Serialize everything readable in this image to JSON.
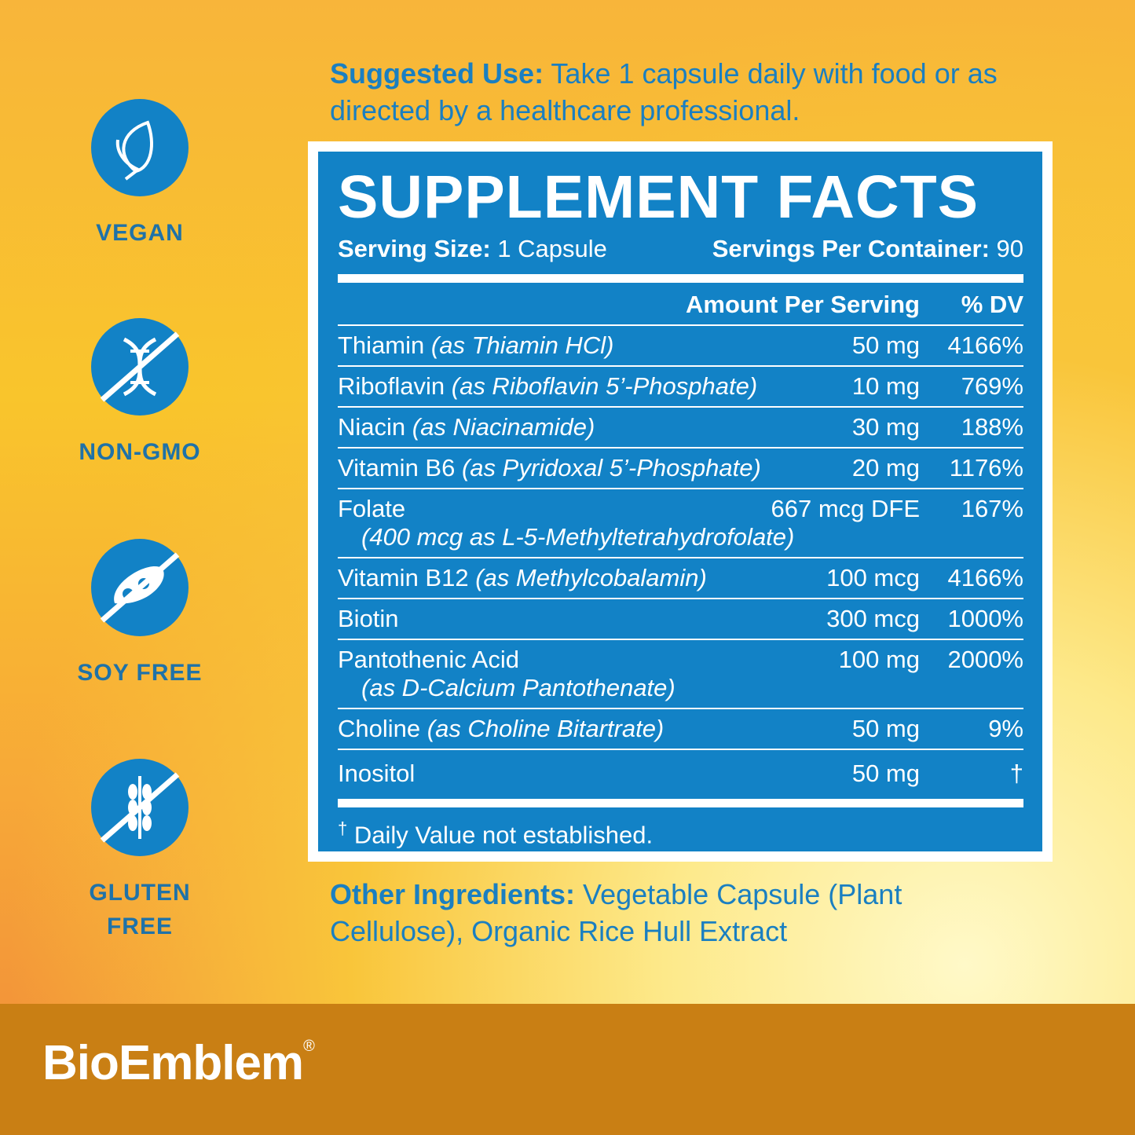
{
  "badges": [
    {
      "lines": [
        "VEGAN"
      ]
    },
    {
      "lines": [
        "NON-GMO"
      ]
    },
    {
      "lines": [
        "SOY FREE"
      ]
    },
    {
      "lines": [
        "GLUTEN",
        "FREE"
      ]
    }
  ],
  "suggested_use": {
    "label": "Suggested Use:",
    "text": "Take 1 capsule daily with food or as directed by a healthcare professional."
  },
  "facts": {
    "title": "SUPPLEMENT FACTS",
    "serving_size_label": "Serving Size:",
    "serving_size": "1 Capsule",
    "servings_label": "Servings Per Container:",
    "servings": 90,
    "amount_header": "Amount Per Serving",
    "dv_header": "% DV",
    "rows": [
      {
        "name": "Thiamin",
        "source": "(as Thiamin HCl)",
        "amount": "50 mg",
        "dv": "4166%"
      },
      {
        "name": "Riboflavin",
        "source": "(as Riboflavin 5’-Phosphate)",
        "amount": "10 mg",
        "dv": "769%"
      },
      {
        "name": "Niacin",
        "source": "(as Niacinamide)",
        "amount": "30 mg",
        "dv": "188%"
      },
      {
        "name": "Vitamin B6",
        "source": "(as Pyridoxal 5’-Phosphate)",
        "amount": "20 mg",
        "dv": "1176%"
      },
      {
        "name": "Folate",
        "source_line": "(400 mcg as L-5-Methyltetrahydrofolate)",
        "amount": "667 mcg DFE",
        "dv": "167%"
      },
      {
        "name": "Vitamin B12",
        "source": "(as Methylcobalamin)",
        "amount": "100 mcg",
        "dv": "4166%"
      },
      {
        "name": "Biotin",
        "amount": "300 mcg",
        "dv": "1000%"
      },
      {
        "name": "Pantothenic Acid",
        "source_line": "(as D-Calcium Pantothenate)",
        "amount": "100 mg",
        "dv": "2000%"
      },
      {
        "name": "Choline",
        "source": "(as Choline Bitartrate)",
        "amount": "50 mg",
        "dv": "9%"
      },
      {
        "name": "Inositol",
        "amount": "50 mg",
        "dv": "†"
      }
    ],
    "footnote": {
      "mark": "†",
      "text": "Daily Value not established."
    }
  },
  "other_ingredients": {
    "label": "Other Ingredients:",
    "text": "Vegetable Capsule (Plant Cellulose), Organic Rice Hull Extract"
  },
  "brand": {
    "name": "BioEmblem",
    "mark": "®"
  }
}
